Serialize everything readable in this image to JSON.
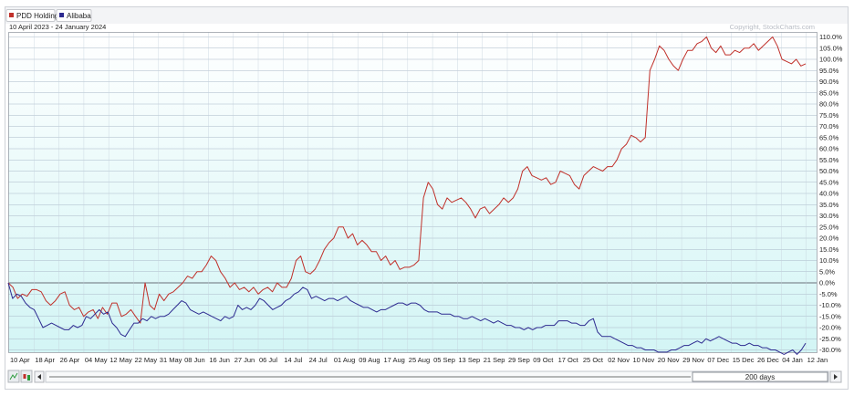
{
  "legend": [
    {
      "name": "PDD Holdings",
      "color": "#c0302a"
    },
    {
      "name": "Alibaba",
      "color": "#2d2a90"
    }
  ],
  "date_range": "10 April 2023 - 24 January 2024",
  "copyright": "Copyright, StockCharts.com",
  "scroll_label": "200 days",
  "chart_data": {
    "type": "line",
    "title": "",
    "xlabel": "",
    "ylabel": "",
    "ylim": [
      -33,
      112
    ],
    "y_ticks": [
      "110.0%",
      "105.0%",
      "100.0%",
      "95.0%",
      "90.0%",
      "85.0%",
      "80.0%",
      "75.0%",
      "70.0%",
      "65.0%",
      "60.0%",
      "55.0%",
      "50.0%",
      "45.0%",
      "40.0%",
      "35.0%",
      "30.0%",
      "25.0%",
      "20.0%",
      "15.0%",
      "10.0%",
      "5.0%",
      "0.0%",
      "-5.0%",
      "-10.0%",
      "-15.0%",
      "-20.0%",
      "-25.0%",
      "-30.0%"
    ],
    "x_ticks": [
      "10 Apr",
      "18 Apr",
      "26 Apr",
      "04 May",
      "12 May",
      "22 May",
      "31 May",
      "08 Jun",
      "16 Jun",
      "27 Jun",
      "06 Jul",
      "14 Jul",
      "24 Jul",
      "01 Aug",
      "09 Aug",
      "17 Aug",
      "25 Aug",
      "05 Sep",
      "13 Sep",
      "21 Sep",
      "29 Sep",
      "09 Oct",
      "17 Oct",
      "25 Oct",
      "02 Nov",
      "10 Nov",
      "20 Nov",
      "29 Nov",
      "07 Dec",
      "15 Dec",
      "26 Dec",
      "04 Jan",
      "12 Jan"
    ],
    "grid": true,
    "legend_position": "top-left",
    "series": [
      {
        "name": "PDD Holdings",
        "color": "#c0302a",
        "values": [
          0,
          -2,
          -7,
          -5,
          -6,
          -3,
          -3,
          -4,
          -8,
          -10,
          -8,
          -5,
          -4,
          -10,
          -12,
          -11,
          -15,
          -13,
          -12,
          -16,
          -11,
          -14,
          -9,
          -9,
          -15,
          -14,
          -12,
          -15,
          -18,
          0,
          -10,
          -12,
          -5,
          -8,
          -5,
          -4,
          -2,
          0,
          3,
          2,
          5,
          5,
          8,
          12,
          10,
          5,
          2,
          -2,
          0,
          -3,
          -2,
          -4,
          -2,
          -5,
          -3,
          -2,
          -4,
          0,
          -2,
          -2,
          2,
          10,
          12,
          5,
          4,
          6,
          10,
          15,
          18,
          20,
          25,
          25,
          20,
          22,
          17,
          19,
          17,
          14,
          14,
          10,
          12,
          8,
          10,
          6,
          7,
          7,
          8,
          10,
          38,
          45,
          42,
          35,
          33,
          38,
          36,
          37,
          38,
          36,
          33,
          29,
          33,
          34,
          31,
          33,
          35,
          38,
          36,
          38,
          42,
          50,
          52,
          48,
          47,
          46,
          47,
          44,
          45,
          50,
          49,
          48,
          44,
          42,
          48,
          50,
          52,
          51,
          50,
          52,
          52,
          55,
          60,
          62,
          66,
          65,
          63,
          65,
          95,
          100,
          106,
          104,
          100,
          97,
          95,
          100,
          104,
          104,
          107,
          108,
          110,
          105,
          103,
          106,
          102,
          102,
          104,
          103,
          105,
          105,
          107,
          104,
          106,
          108,
          110,
          106,
          100,
          99,
          98,
          100,
          97,
          98
        ],
        "comment_dummy": ""
      },
      {
        "name": "Alibaba",
        "color": "#2d2a90",
        "values": [
          0,
          -7,
          -5,
          -6,
          -9,
          -11,
          -12,
          -16,
          -20,
          -19,
          -18,
          -19,
          -20,
          -21,
          -21,
          -19,
          -20,
          -19,
          -15,
          -16,
          -14,
          -12,
          -14,
          -13,
          -18,
          -20,
          -23,
          -24,
          -21,
          -18,
          -18,
          -16,
          -17,
          -15,
          -16,
          -15,
          -15,
          -14,
          -12,
          -10,
          -8,
          -9,
          -12,
          -13,
          -14,
          -13,
          -14,
          -15,
          -16,
          -17,
          -15,
          -16,
          -15,
          -10,
          -12,
          -11,
          -12,
          -10,
          -7,
          -8,
          -10,
          -12,
          -11,
          -10,
          -8,
          -7,
          -5,
          -4,
          -2,
          -3,
          -7,
          -6,
          -7,
          -8,
          -7,
          -7,
          -8,
          -7,
          -6,
          -8,
          -9,
          -10,
          -11,
          -11,
          -12,
          -13,
          -12,
          -12,
          -11,
          -10,
          -9,
          -9,
          -10,
          -9,
          -9,
          -10,
          -12,
          -13,
          -13,
          -13,
          -14,
          -14,
          -14,
          -15,
          -15,
          -16,
          -16,
          -15,
          -16,
          -17,
          -16,
          -17,
          -18,
          -17,
          -18,
          -19,
          -19,
          -20,
          -20,
          -21,
          -20,
          -21,
          -20,
          -20,
          -19,
          -19,
          -19,
          -17,
          -17,
          -17,
          -18,
          -18,
          -19,
          -19,
          -17,
          -16,
          -22,
          -24,
          -24,
          -24,
          -25,
          -26,
          -27,
          -28,
          -28,
          -29,
          -29,
          -30,
          -30,
          -30,
          -31,
          -31,
          -31,
          -30,
          -30,
          -29,
          -28,
          -28,
          -27,
          -26,
          -27,
          -25,
          -26,
          -25,
          -24,
          -25,
          -26,
          -27,
          -27,
          -28,
          -28,
          -27,
          -28,
          -28,
          -29,
          -29,
          -30,
          -30,
          -31,
          -32,
          -31,
          -30,
          -32,
          -30,
          -27
        ]
      }
    ]
  }
}
